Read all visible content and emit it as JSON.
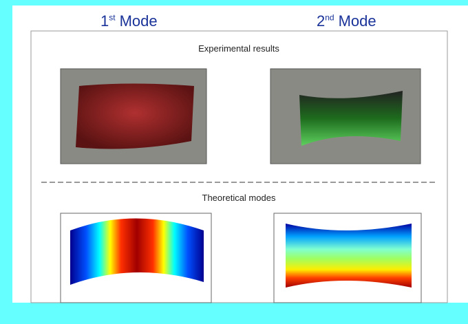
{
  "columns": [
    {
      "number": "1",
      "suffix": "st",
      "label": "Mode"
    },
    {
      "number": "2",
      "suffix": "nd",
      "label": "Mode"
    }
  ],
  "sections": [
    "Experimental results",
    "Theoretical modes"
  ]
}
